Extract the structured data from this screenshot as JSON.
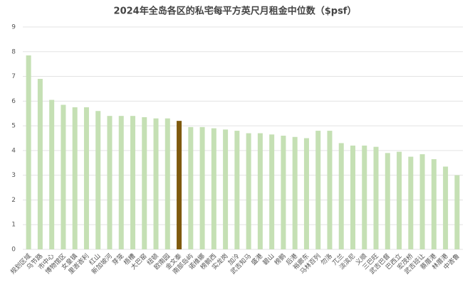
{
  "chart_data": {
    "type": "bar",
    "title": "2024年全岛各区的私宅每平方英尺月租金中位数（$psf）",
    "categories": [
      "规划区域",
      "乌节路",
      "市中心",
      "博物馆区",
      "女皇镇",
      "里峇峇利",
      "红山",
      "新加坡河",
      "芽笼",
      "梧槽",
      "大巴窑",
      "纽顿",
      "欧南园",
      "金文泰",
      "南部岛屿",
      "诺维娜",
      "榜鹅西",
      "实龙岗",
      "加冷",
      "武吉知马",
      "盛港",
      "碧山",
      "榜鹅",
      "后港",
      "裕廊东",
      "马林百列",
      "勿洛",
      "兀兰",
      "淡滨尼",
      "义顺",
      "三巴旺",
      "武吉巴督",
      "巴西立",
      "宏茂桥",
      "武吉班让",
      "蔡厝港",
      "林厝港",
      "中峇鲁"
    ],
    "values": [
      7.85,
      6.9,
      6.05,
      5.85,
      5.75,
      5.75,
      5.6,
      5.4,
      5.4,
      5.4,
      5.35,
      5.3,
      5.3,
      5.2,
      4.95,
      4.95,
      4.9,
      4.85,
      4.8,
      4.7,
      4.7,
      4.65,
      4.6,
      4.55,
      4.5,
      4.8,
      4.8,
      4.3,
      4.2,
      4.2,
      4.15,
      3.9,
      3.95,
      3.75,
      3.85,
      3.65,
      3.35,
      3.0
    ],
    "colors": [
      "#c5e0b4",
      "#c5e0b4",
      "#c5e0b4",
      "#c5e0b4",
      "#c5e0b4",
      "#c5e0b4",
      "#c5e0b4",
      "#c5e0b4",
      "#c5e0b4",
      "#c5e0b4",
      "#c5e0b4",
      "#c5e0b4",
      "#c5e0b4",
      "#7f5a0e",
      "#c5e0b4",
      "#c5e0b4",
      "#c5e0b4",
      "#c5e0b4",
      "#c5e0b4",
      "#c5e0b4",
      "#c5e0b4",
      "#c5e0b4",
      "#c5e0b4",
      "#c5e0b4",
      "#c5e0b4",
      "#c5e0b4",
      "#c5e0b4",
      "#c5e0b4",
      "#c5e0b4",
      "#c5e0b4",
      "#c5e0b4",
      "#c5e0b4",
      "#c5e0b4",
      "#c5e0b4",
      "#c5e0b4",
      "#c5e0b4",
      "#c5e0b4",
      "#c5e0b4"
    ],
    "ylim": [
      0,
      9
    ],
    "yticks": [
      0,
      1,
      2,
      3,
      4,
      5,
      6,
      7,
      8,
      9
    ],
    "grid": true
  }
}
